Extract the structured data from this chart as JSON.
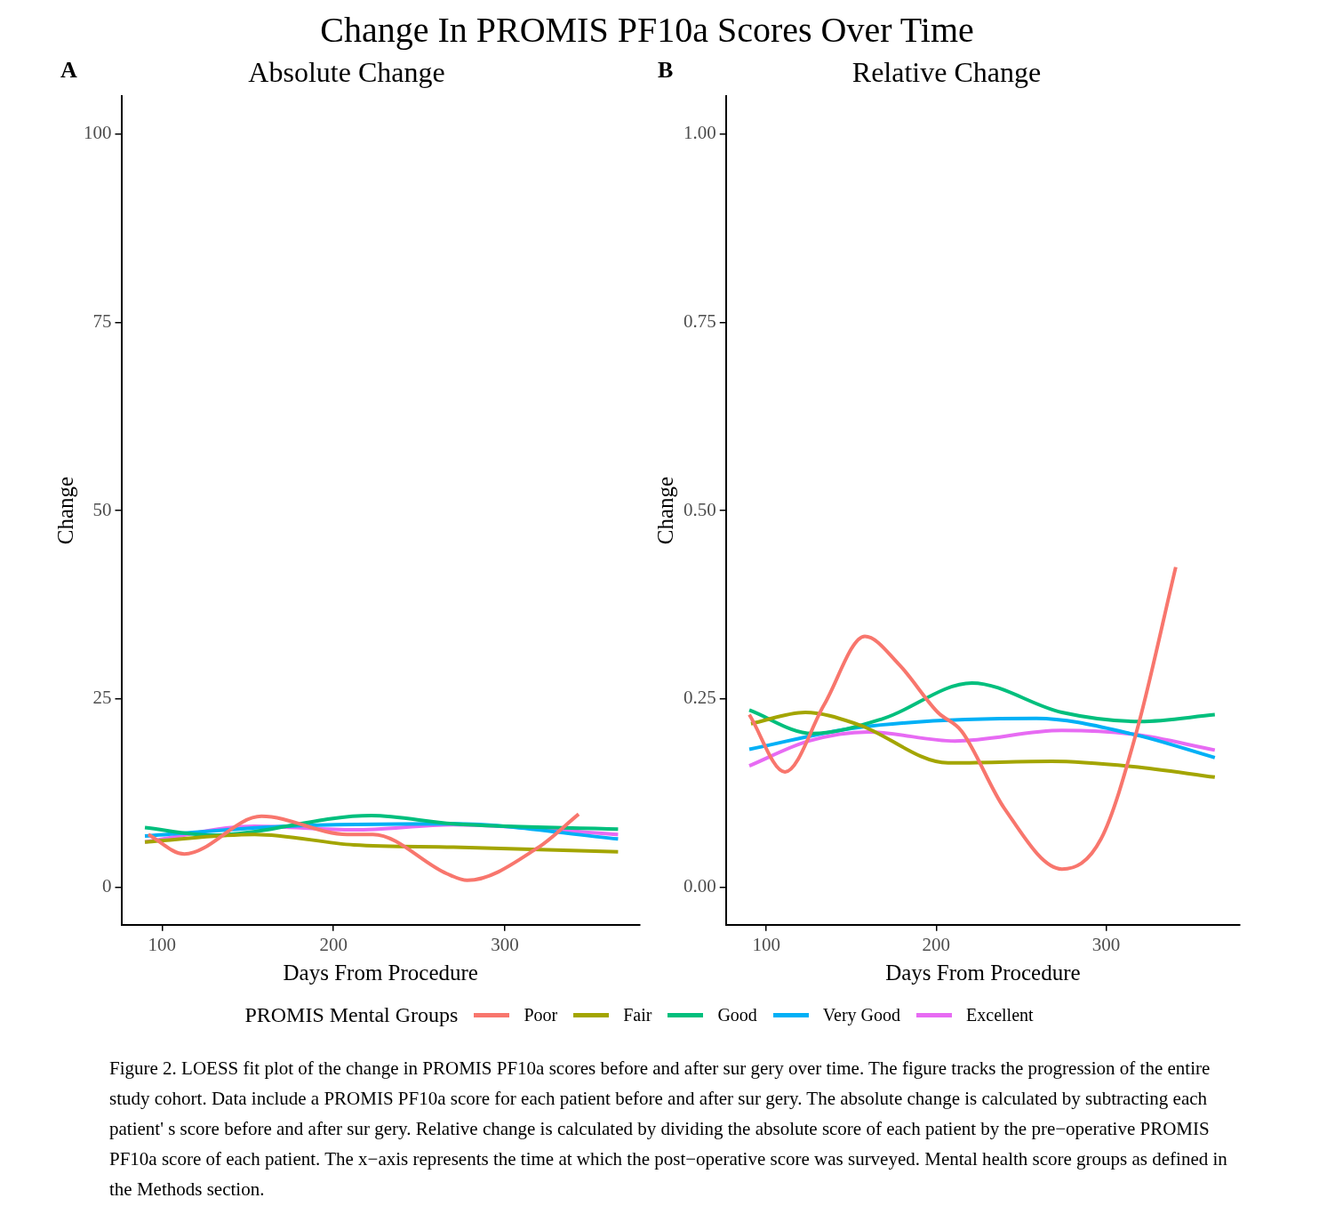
{
  "chart_data": [
    {
      "type": "line",
      "title": "Change In PROMIS PF10a Scores Over Time",
      "subtitle": "Absolute Change",
      "xlabel": "Days From Procedure",
      "ylabel": "Change",
      "legend_title": "PROMIS Mental Groups",
      "legend": "bottom",
      "grid": false,
      "marker": "none",
      "line_style": "solid",
      "xlim": [
        76.25,
        378.75
      ],
      "xticks": [
        100,
        200,
        300
      ],
      "ylim": [
        -5,
        105
      ],
      "yticks": [
        0,
        25,
        50,
        75,
        100
      ],
      "annotations": [
        "A",
        "Figure 2. LOESS fit plot of the change in PROMIS PF10a scores before and after sur  gery over time. The figure tracks the progression of the entire study cohort. Data include a PROMIS PF10a score for each patient before and after sur  gery. The absolute change is calculated by subtracting each patient' s score before and after sur gery. Relative change is calculated by dividing the absolute score of each patient by the pre−operative PROMIS PF10a score of each patient. The x−axis represents the time at which the post−operative score was surveyed. Mental health score groups as defined in the Methods section."
      ],
      "series": [
        {
          "name": "Poor",
          "color": "#f8766d",
          "x": [
            92,
            113,
            158,
            208,
            223,
            266,
            278,
            319,
            343
          ],
          "values": [
            7.0,
            4.4,
            9.4,
            7.0,
            7.0,
            1.8,
            0.9,
            5.2,
            9.7
          ]
        },
        {
          "name": "Fair",
          "color": "#a3a500",
          "x": [
            90,
            154,
            212,
            270,
            366
          ],
          "values": [
            6.0,
            7.0,
            5.6,
            5.3,
            4.7
          ]
        },
        {
          "name": "Good",
          "color": "#00bf7d",
          "x": [
            90,
            129,
            222,
            270,
            366
          ],
          "values": [
            7.9,
            6.9,
            9.5,
            8.4,
            7.7
          ]
        },
        {
          "name": "Very Good",
          "color": "#00b0f6",
          "x": [
            90,
            173,
            270,
            366
          ],
          "values": [
            6.8,
            8.1,
            8.4,
            6.4
          ]
        },
        {
          "name": "Excellent",
          "color": "#e76bf3",
          "x": [
            90,
            154,
            212,
            270,
            366
          ],
          "values": [
            6.0,
            8.1,
            7.6,
            8.3,
            7.0
          ]
        }
      ]
    },
    {
      "type": "line",
      "subtitle": "Relative Change",
      "xlabel": "Days From Procedure",
      "ylabel": "Change",
      "grid": false,
      "marker": "none",
      "line_style": "solid",
      "xlim": [
        76.25,
        378.75
      ],
      "xticks": [
        100,
        200,
        300
      ],
      "ylim": [
        -0.05,
        1.05
      ],
      "yticks": [
        {
          "value": 0,
          "label": "0.00"
        },
        {
          "value": 0.25,
          "label": "0.25"
        },
        {
          "value": 0.5,
          "label": "0.50"
        },
        {
          "value": 0.75,
          "label": "0.75"
        },
        {
          "value": 1,
          "label": "1.00"
        }
      ],
      "annotations": [
        "B"
      ],
      "series": [
        {
          "color": "#f8766d",
          "x": [
            90,
            111,
            134,
            158,
            178,
            201,
            215,
            240,
            274,
            297,
            318,
            341
          ],
          "values": [
            0.229,
            0.153,
            0.242,
            0.333,
            0.296,
            0.232,
            0.207,
            0.105,
            0.024,
            0.064,
            0.207,
            0.425
          ]
        },
        {
          "color": "#a3a500",
          "x": [
            91,
            123,
            154,
            207,
            268,
            316,
            364
          ],
          "values": [
            0.217,
            0.232,
            0.216,
            0.165,
            0.167,
            0.16,
            0.146
          ]
        },
        {
          "color": "#00bf7d",
          "x": [
            90,
            127,
            169,
            221,
            274,
            320,
            364
          ],
          "values": [
            0.235,
            0.204,
            0.224,
            0.271,
            0.232,
            0.22,
            0.229
          ]
        },
        {
          "color": "#00b0f6",
          "x": [
            90,
            154,
            259,
            316,
            364
          ],
          "values": [
            0.183,
            0.212,
            0.224,
            0.203,
            0.172
          ]
        },
        {
          "color": "#e76bf3",
          "x": [
            90,
            125,
            160,
            211,
            274,
            316,
            364
          ],
          "values": [
            0.161,
            0.194,
            0.206,
            0.194,
            0.208,
            0.203,
            0.182
          ]
        }
      ]
    }
  ]
}
